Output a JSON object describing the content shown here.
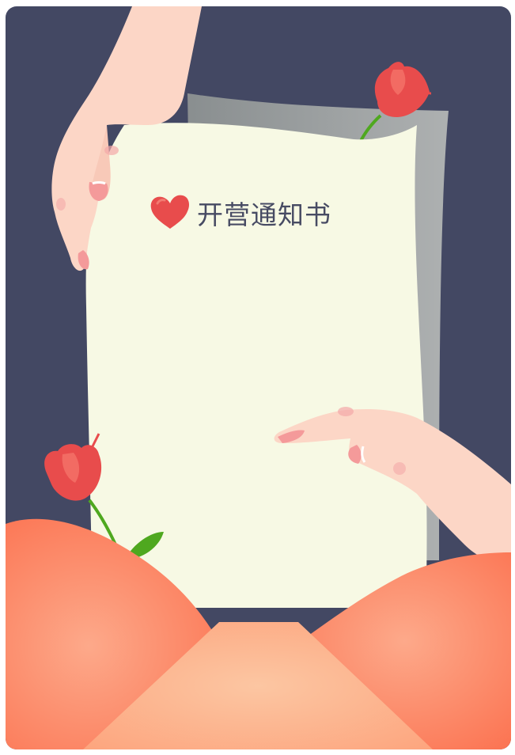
{
  "notice": {
    "title": "开营通知书",
    "title_icon": "heart-icon"
  },
  "colors": {
    "background": "#434863",
    "paper": "#f7f9e4",
    "paper_shadow": "#a3a6a6",
    "envelope": "#fb6f4c",
    "envelope_flap": "#fdb38e",
    "skin": "#fcd6c6",
    "nail": "#f49a9a",
    "rose": "#e84c4c",
    "leaf": "#4fa81f",
    "title_text": "#474b63"
  }
}
